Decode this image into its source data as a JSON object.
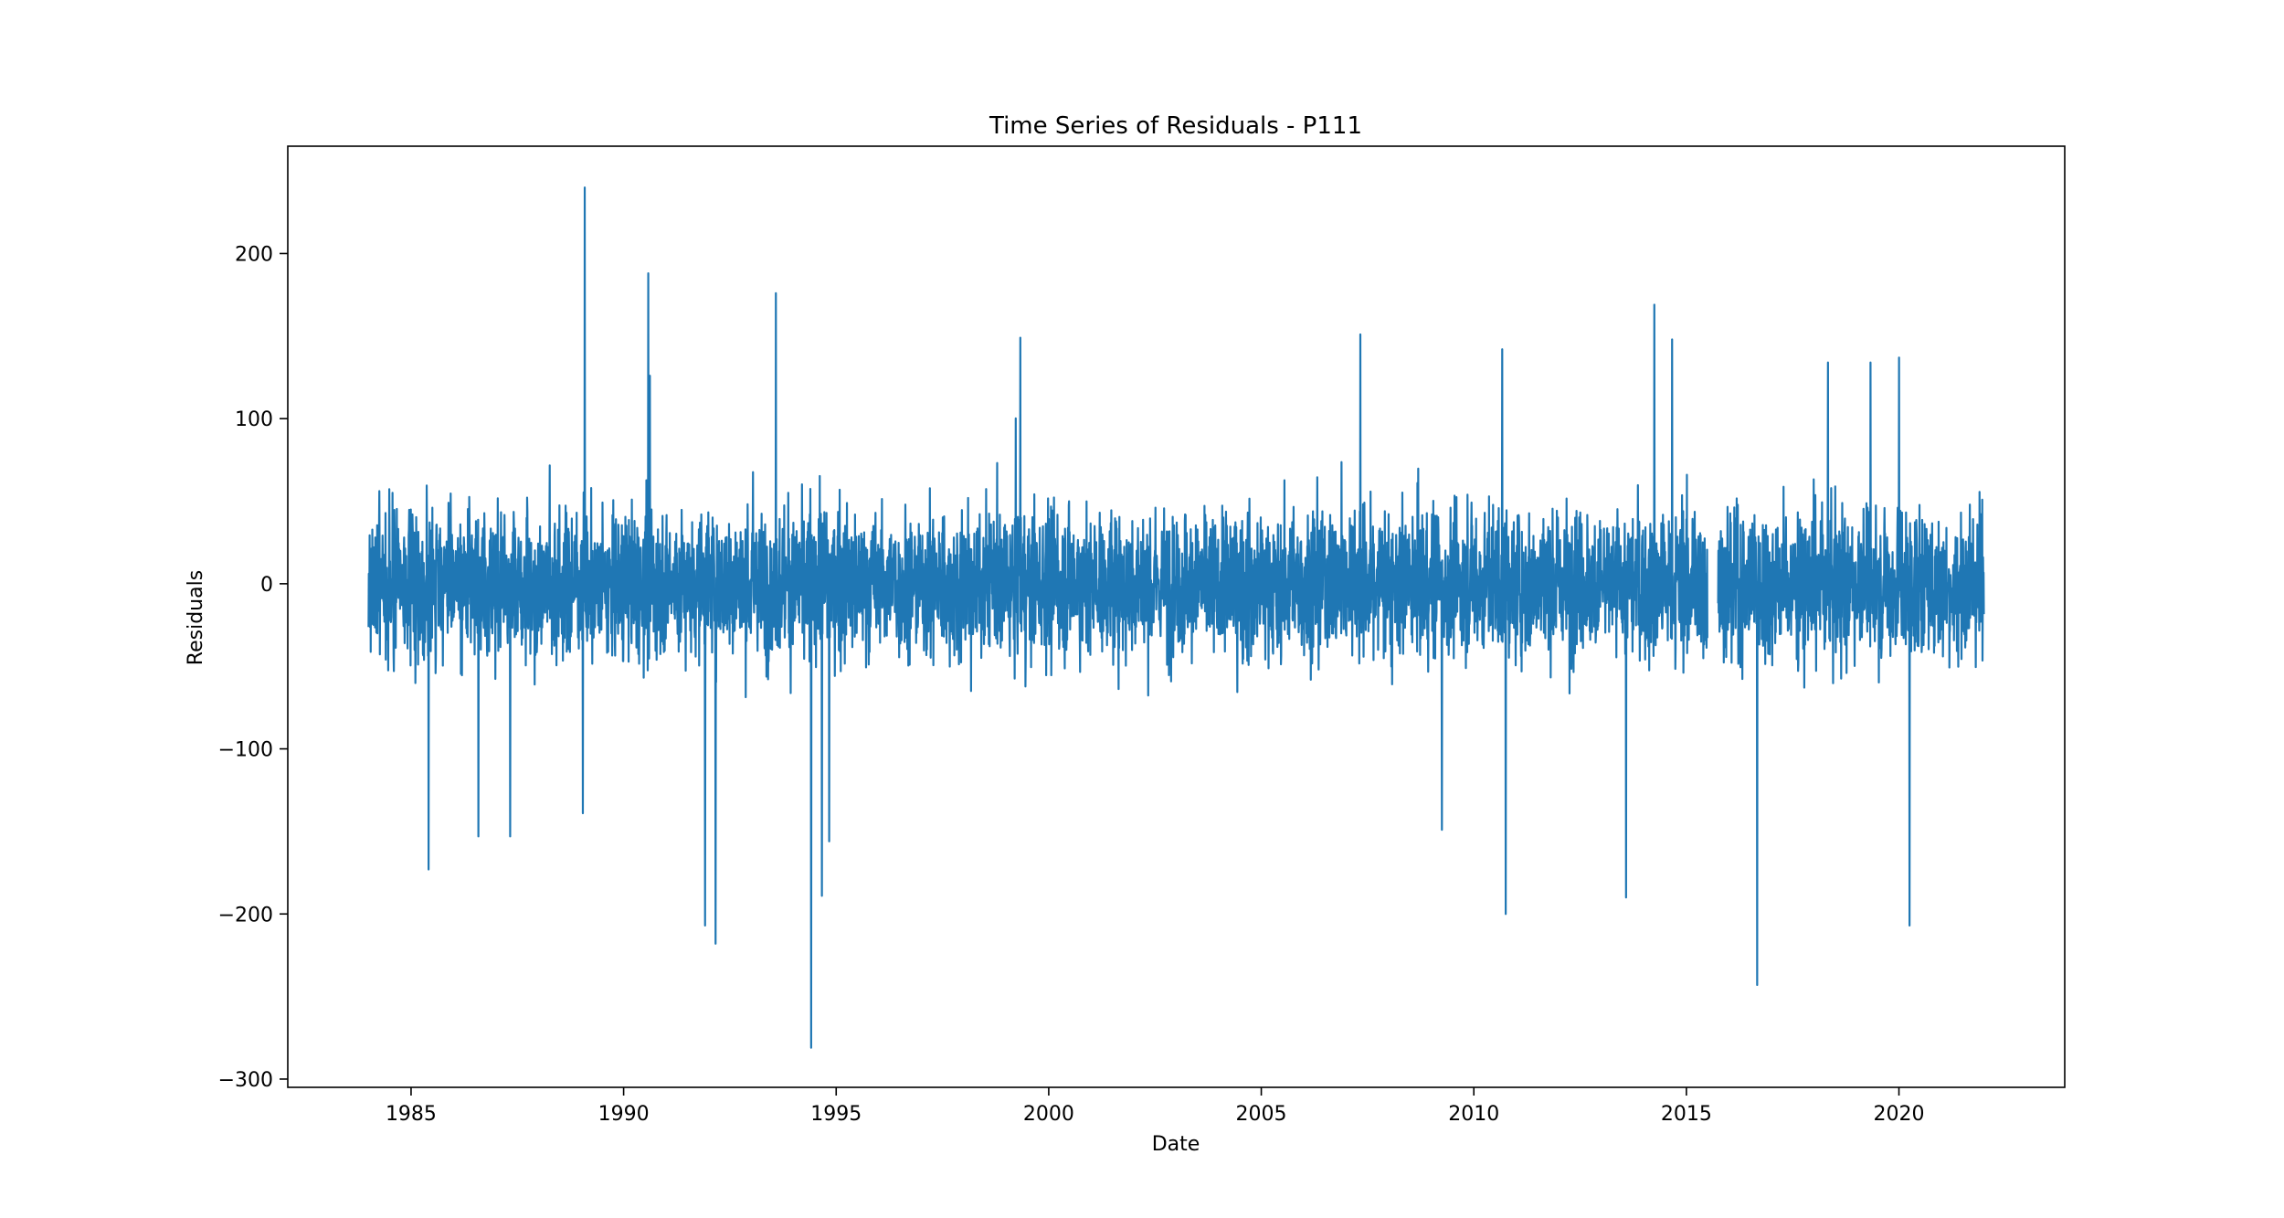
{
  "chart_data": {
    "type": "line",
    "title": "Time Series of Residuals - P111",
    "xlabel": "Date",
    "ylabel": "Residuals",
    "xlim": [
      1982.1,
      2023.9
    ],
    "ylim": [
      -305,
      265
    ],
    "x_ticks": [
      1985,
      1990,
      1995,
      2000,
      2005,
      2010,
      2015,
      2020
    ],
    "y_ticks": [
      -300,
      -200,
      -100,
      0,
      100,
      200
    ],
    "y_tick_labels": [
      "−300",
      "−200",
      "−100",
      "0",
      "100",
      "200"
    ],
    "grid": false,
    "legend": "none",
    "color": "#1f77b4",
    "series": [
      {
        "x_start": "1984-01-01",
        "x_end": "2021-12-31",
        "gaps": [
          [
            "2015-07-01",
            "2015-09-30"
          ]
        ],
        "typical_range": [
          -80,
          80
        ],
        "extremes": [
          {
            "x": "1985-06-01",
            "y": -173
          },
          {
            "x": "1986-08-01",
            "y": -153
          },
          {
            "x": "1987-05-01",
            "y": -153
          },
          {
            "x": "1989-02-01",
            "y": 240
          },
          {
            "x": "1989-01-15",
            "y": -139
          },
          {
            "x": "1990-08-01",
            "y": 188
          },
          {
            "x": "1990-08-15",
            "y": 126
          },
          {
            "x": "1991-12-01",
            "y": -207
          },
          {
            "x": "1992-03-01",
            "y": -218
          },
          {
            "x": "1993-08-01",
            "y": 176
          },
          {
            "x": "1994-06-01",
            "y": -281
          },
          {
            "x": "1994-09-01",
            "y": -189
          },
          {
            "x": "1994-11-01",
            "y": -156
          },
          {
            "x": "1999-05-01",
            "y": 149
          },
          {
            "x": "2007-05-01",
            "y": 151
          },
          {
            "x": "2009-04-01",
            "y": -149
          },
          {
            "x": "2010-09-01",
            "y": 142
          },
          {
            "x": "2010-10-01",
            "y": -200
          },
          {
            "x": "2013-08-01",
            "y": -190
          },
          {
            "x": "2014-04-01",
            "y": 169
          },
          {
            "x": "2014-09-01",
            "y": 148
          },
          {
            "x": "2016-09-01",
            "y": -243
          },
          {
            "x": "2020-01-01",
            "y": 137
          },
          {
            "x": "2020-04-01",
            "y": -207
          },
          {
            "x": "2019-05-01",
            "y": 134
          },
          {
            "x": "2018-05-01",
            "y": 134
          }
        ]
      }
    ]
  }
}
